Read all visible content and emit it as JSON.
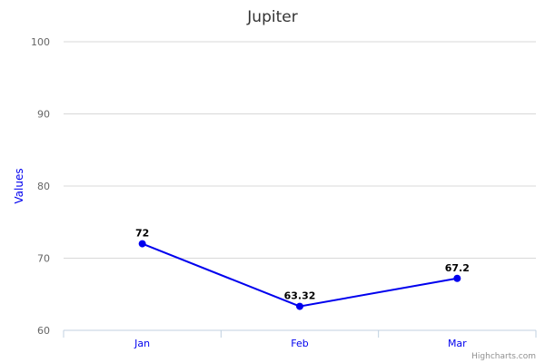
{
  "chart_data": {
    "type": "line",
    "title": "Jupiter",
    "ylabel": "Values",
    "xlabel": "",
    "categories": [
      "Jan",
      "Feb",
      "Mar"
    ],
    "series": [
      {
        "values": [
          72,
          63.32,
          67.2
        ],
        "color": "#0000ee"
      }
    ],
    "ylim": [
      60,
      100
    ],
    "yticks": [
      60,
      70,
      80,
      90,
      100
    ],
    "data_labels": [
      "72",
      "63.32",
      "67.2"
    ],
    "grid": true,
    "legend": "none"
  },
  "credits": "Highcharts.com"
}
